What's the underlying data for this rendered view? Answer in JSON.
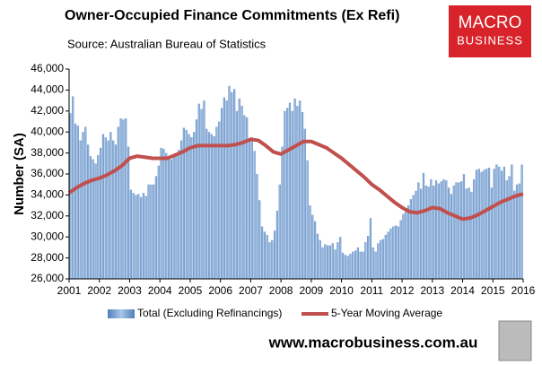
{
  "chart_data": {
    "type": "bar-line",
    "title": "Owner-Occupied Finance Commitments (Ex Refi)",
    "subtitle": "Source: Australian  Bureau of Statistics",
    "logo": [
      "MACRO",
      "BUSINESS"
    ],
    "website": "www.macrobusiness.com.au",
    "y_label": "Number (SA)",
    "xlim": [
      2001,
      2016
    ],
    "xticks": [
      2001,
      2002,
      2003,
      2004,
      2005,
      2006,
      2007,
      2008,
      2009,
      2010,
      2011,
      2012,
      2013,
      2014,
      2015,
      2016
    ],
    "ylim": [
      26000,
      46000
    ],
    "yticks": [
      {
        "value": 26000,
        "label": "26,000"
      },
      {
        "value": 28000,
        "label": "28,000"
      },
      {
        "value": 30000,
        "label": "30,000"
      },
      {
        "value": 32000,
        "label": "32,000"
      },
      {
        "value": 34000,
        "label": "34,000"
      },
      {
        "value": 36000,
        "label": "36,000"
      },
      {
        "value": 38000,
        "label": "38,000"
      },
      {
        "value": 40000,
        "label": "40,000"
      },
      {
        "value": 42000,
        "label": "42,000"
      },
      {
        "value": 44000,
        "label": "44,000"
      },
      {
        "value": 46000,
        "label": "46,000"
      }
    ],
    "series": [
      {
        "name": "Total (Excluding Refinancings)",
        "type": "bar",
        "color": "#7fa7d6",
        "x": [
          2001,
          2001.083,
          2001.167,
          2001.25,
          2001.333,
          2001.417,
          2001.5,
          2001.583,
          2001.667,
          2001.75,
          2001.833,
          2001.917,
          2002,
          2002.083,
          2002.167,
          2002.25,
          2002.333,
          2002.417,
          2002.5,
          2002.583,
          2002.667,
          2002.75,
          2002.833,
          2002.917,
          2003,
          2003.083,
          2003.167,
          2003.25,
          2003.333,
          2003.417,
          2003.5,
          2003.583,
          2003.667,
          2003.75,
          2003.833,
          2003.917,
          2004,
          2004.083,
          2004.167,
          2004.25,
          2004.333,
          2004.417,
          2004.5,
          2004.583,
          2004.667,
          2004.75,
          2004.833,
          2004.917,
          2005,
          2005.083,
          2005.167,
          2005.25,
          2005.333,
          2005.417,
          2005.5,
          2005.583,
          2005.667,
          2005.75,
          2005.833,
          2005.917,
          2006,
          2006.083,
          2006.167,
          2006.25,
          2006.333,
          2006.417,
          2006.5,
          2006.583,
          2006.667,
          2006.75,
          2006.833,
          2006.917,
          2007,
          2007.083,
          2007.167,
          2007.25,
          2007.333,
          2007.417,
          2007.5,
          2007.583,
          2007.667,
          2007.75,
          2007.833,
          2007.917,
          2008,
          2008.083,
          2008.167,
          2008.25,
          2008.333,
          2008.417,
          2008.5,
          2008.583,
          2008.667,
          2008.75,
          2008.833,
          2008.917,
          2009,
          2009.083,
          2009.167,
          2009.25,
          2009.333,
          2009.417,
          2009.5,
          2009.583,
          2009.667,
          2009.75,
          2009.833,
          2009.917,
          2010,
          2010.083,
          2010.167,
          2010.25,
          2010.333,
          2010.417,
          2010.5,
          2010.583,
          2010.667,
          2010.75,
          2010.833,
          2010.917,
          2011,
          2011.083,
          2011.167,
          2011.25,
          2011.333,
          2011.417,
          2011.5,
          2011.583,
          2011.667,
          2011.75,
          2011.833,
          2011.917,
          2012,
          2012.083,
          2012.167,
          2012.25,
          2012.333,
          2012.417,
          2012.5,
          2012.583,
          2012.667,
          2012.75,
          2012.833,
          2012.917,
          2013,
          2013.083,
          2013.167,
          2013.25,
          2013.333,
          2013.417,
          2013.5,
          2013.583,
          2013.667,
          2013.75,
          2013.833,
          2013.917,
          2014,
          2014.083,
          2014.167,
          2014.25,
          2014.333,
          2014.417,
          2014.5,
          2014.583,
          2014.667,
          2014.75,
          2014.833,
          2014.917,
          2015,
          2015.083,
          2015.167,
          2015.25,
          2015.333,
          2015.417,
          2015.5,
          2015.583,
          2015.667,
          2015.75,
          2015.833,
          2015.917
        ],
        "values": [
          41800,
          43400,
          40800,
          40600,
          39200,
          40000,
          40500,
          38800,
          37700,
          37400,
          37000,
          37800,
          38500,
          39800,
          39500,
          39200,
          40000,
          39200,
          38800,
          40500,
          41300,
          41200,
          41300,
          38600,
          34500,
          34200,
          34000,
          34100,
          33800,
          34200,
          33900,
          35000,
          35000,
          35000,
          35800,
          36800,
          38500,
          38400,
          38000,
          37600,
          37400,
          37700,
          38000,
          38300,
          39200,
          40400,
          40200,
          39800,
          39500,
          40000,
          41200,
          42700,
          42200,
          43000,
          40300,
          40000,
          39800,
          39600,
          40500,
          41000,
          42300,
          43300,
          43000,
          44400,
          43800,
          44100,
          42000,
          43200,
          42500,
          41600,
          41400,
          39200,
          39500,
          38200,
          36000,
          33500,
          31000,
          30500,
          30200,
          29500,
          29700,
          30600,
          32500,
          35000,
          38600,
          42000,
          42300,
          42800,
          42000,
          43200,
          42500,
          43000,
          41900,
          40300,
          37300,
          33000,
          32100,
          31500,
          30300,
          29700,
          29000,
          29300,
          29200,
          29200,
          29400,
          28800,
          29500,
          30000,
          28500,
          28300,
          28200,
          28400,
          28600,
          28700,
          29000,
          28600,
          28600,
          29500,
          30100,
          31800,
          29000,
          28600,
          29400,
          29700,
          29800,
          30200,
          30500,
          30800,
          31000,
          31100,
          31000,
          31600,
          32200,
          32600,
          33000,
          33600,
          34000,
          34400,
          35200,
          34600,
          36100,
          34900,
          34800,
          35500,
          34900,
          35400,
          35100,
          35300,
          35500,
          35400,
          34700,
          34100,
          34900,
          35200,
          35200,
          35300,
          36000,
          34600,
          34700,
          34300,
          35500,
          36400,
          36500,
          36200,
          36400,
          36500,
          36600,
          34700,
          36500,
          36900,
          36700,
          36300,
          36700,
          35400,
          35800,
          36900,
          34400,
          35000,
          35100,
          36900
        ]
      },
      {
        "name": "5-Year Moving Average",
        "type": "line",
        "color": "#c0504d",
        "x": [
          2001,
          2001.25,
          2001.5,
          2001.75,
          2002,
          2002.25,
          2002.5,
          2002.75,
          2003,
          2003.25,
          2003.5,
          2003.75,
          2004,
          2004.25,
          2004.5,
          2004.75,
          2005,
          2005.25,
          2005.5,
          2005.75,
          2006,
          2006.25,
          2006.5,
          2006.75,
          2007,
          2007.25,
          2007.5,
          2007.75,
          2008,
          2008.25,
          2008.5,
          2008.75,
          2009,
          2009.25,
          2009.5,
          2009.75,
          2010,
          2010.25,
          2010.5,
          2010.75,
          2011,
          2011.25,
          2011.5,
          2011.75,
          2012,
          2012.25,
          2012.5,
          2012.75,
          2013,
          2013.25,
          2013.5,
          2013.75,
          2014,
          2014.25,
          2014.5,
          2014.75,
          2015,
          2015.25,
          2015.5,
          2015.75,
          2016
        ],
        "values": [
          34200,
          34700,
          35100,
          35400,
          35600,
          35900,
          36300,
          36800,
          37500,
          37700,
          37600,
          37500,
          37500,
          37500,
          37800,
          38100,
          38500,
          38700,
          38700,
          38700,
          38700,
          38700,
          38800,
          39000,
          39300,
          39200,
          38700,
          38100,
          37900,
          38300,
          38700,
          39100,
          39100,
          38800,
          38500,
          38000,
          37500,
          36900,
          36300,
          35700,
          35000,
          34500,
          33900,
          33300,
          32800,
          32400,
          32300,
          32500,
          32800,
          32700,
          32300,
          32000,
          31700,
          31800,
          32100,
          32500,
          32900,
          33300,
          33600,
          33900,
          34100
        ]
      }
    ]
  }
}
